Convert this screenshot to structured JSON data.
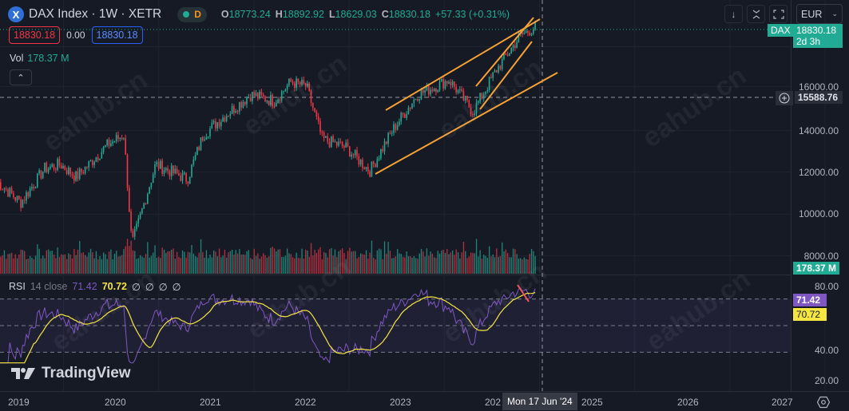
{
  "header": {
    "symbol_icon": "X",
    "title": "DAX Index · 1W · XETR",
    "status_badge": "D",
    "ohlc": [
      {
        "key": "O",
        "value": "18773.24"
      },
      {
        "key": "H",
        "value": "18892.92"
      },
      {
        "key": "L",
        "value": "18629.03"
      },
      {
        "key": "C",
        "value": "18830.18"
      }
    ],
    "change": "+57.33 (+0.31%)",
    "sell_price": "18830.18",
    "spread": "0.00",
    "buy_price": "18830.18",
    "volume_label": "Vol",
    "volume_value": "178.37 M"
  },
  "toolbar": {
    "currency": "EUR",
    "buttons": [
      "arrow-down-icon",
      "collapse-icon",
      "fullscreen-icon"
    ]
  },
  "price_axis": {
    "labels": [
      "16000.00",
      "14000.00",
      "12000.00",
      "10000.00",
      "8000.00"
    ],
    "last_price_symbol": "DAX",
    "last_price": "18830.18",
    "countdown": "2d 3h",
    "crosshair_price": "15588.76",
    "volume_tag": "178.37 M"
  },
  "rsi": {
    "name": "RSI",
    "params": "14 close",
    "value": "71.42",
    "ma_value": "70.72",
    "extras": [
      "∅",
      "∅",
      "∅",
      "∅"
    ],
    "axis_labels": [
      "80.00",
      "40.00",
      "20.00"
    ],
    "tag_rsi": "71.42",
    "tag_ma": "70.72"
  },
  "time_axis": {
    "labels": [
      "2019",
      "2020",
      "2021",
      "2022",
      "2023",
      "202",
      "2025",
      "2026",
      "2027"
    ],
    "crosshair_time": "Mon 17 Jun '24"
  },
  "branding": {
    "logo_text": "TradingView"
  },
  "watermark": "eahub.cn",
  "colors": {
    "up": "#22ab94",
    "down": "#f23645",
    "trendline": "#f7a234",
    "rsi": "#7e57c2",
    "rsi_ma": "#f5e642",
    "accent_blue": "#2962ff"
  },
  "chart_data": {
    "type": "candlestick",
    "title": "DAX Index · 1W · XETR",
    "timeframe": "1W",
    "x_range": [
      "2018-10",
      "2027"
    ],
    "y_range": [
      7000,
      19500
    ],
    "price_path": [
      {
        "t": "2018-10",
        "close": 11500
      },
      {
        "t": "2019-01",
        "close": 10500
      },
      {
        "t": "2019-04",
        "close": 12100
      },
      {
        "t": "2019-06",
        "close": 12300
      },
      {
        "t": "2019-08",
        "close": 11700
      },
      {
        "t": "2019-12",
        "close": 13250
      },
      {
        "t": "2020-02",
        "close": 13700
      },
      {
        "t": "2020-03",
        "close": 8500
      },
      {
        "t": "2020-06",
        "close": 12300
      },
      {
        "t": "2020-10",
        "close": 11600
      },
      {
        "t": "2020-12",
        "close": 13700
      },
      {
        "t": "2021-03",
        "close": 14700
      },
      {
        "t": "2021-06",
        "close": 15600
      },
      {
        "t": "2021-09",
        "close": 15300
      },
      {
        "t": "2021-11",
        "close": 16200
      },
      {
        "t": "2022-01",
        "close": 16000
      },
      {
        "t": "2022-03",
        "close": 13500
      },
      {
        "t": "2022-06",
        "close": 13100
      },
      {
        "t": "2022-09",
        "close": 12000
      },
      {
        "t": "2022-12",
        "close": 14000
      },
      {
        "t": "2023-03",
        "close": 15600
      },
      {
        "t": "2023-07",
        "close": 16300
      },
      {
        "t": "2023-10",
        "close": 14800
      },
      {
        "t": "2024-01",
        "close": 16800
      },
      {
        "t": "2024-04",
        "close": 18400
      },
      {
        "t": "2024-06",
        "close": 18830
      }
    ],
    "indicators": {
      "RSI(14)": 71.42,
      "RSI_MA": 70.72,
      "rsi_levels": [
        70,
        50,
        30
      ]
    },
    "annotations": [
      "Ascending channel trendlines (orange) from Oct 2022 low",
      "Rising wedge trendlines 2023-10 to 2024-06",
      "RSI bearish divergence line (red) near 80",
      "Crosshair at 15588.76 / Mon 17 Jun '24"
    ]
  }
}
